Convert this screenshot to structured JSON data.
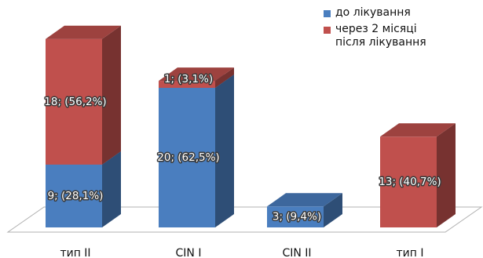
{
  "chart_data": {
    "type": "bar",
    "stacked": true,
    "three_d": true,
    "categories": [
      "тип II",
      "CIN I",
      "CIN II",
      "тип I"
    ],
    "series": [
      {
        "name": "до лікування",
        "color": "#4a7ebf",
        "values": [
          9,
          20,
          3,
          0
        ],
        "labels": [
          "9; (28,1%)",
          "20; (62,5%)",
          "3; (9,4%)",
          ""
        ]
      },
      {
        "name": "через 2 місяці після лікування",
        "color": "#c0504d",
        "values": [
          18,
          1,
          0,
          13
        ],
        "labels": [
          "18; (56,2%)",
          "1; (3,1%)",
          "",
          "13; (40,7%)"
        ]
      }
    ],
    "ylim": [
      0,
      28
    ],
    "grid": false,
    "legend_position": "top-right"
  },
  "legend": {
    "items": [
      {
        "label": "до лікування",
        "color": "#4a7ebf"
      },
      {
        "label": "через 2 місяці\nпісля лікування",
        "color": "#c0504d"
      }
    ]
  }
}
